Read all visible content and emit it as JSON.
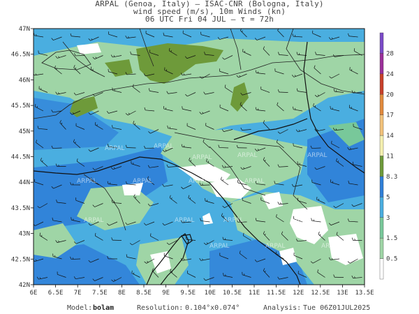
{
  "header": {
    "line1": "ARPAL (Genoa, Italy)  —  ISAC-CNR (Bologna, Italy)",
    "line2": "wind speed (m/s), 10m Winds (kn)",
    "line3": "06 UTC Fri 04 JUL  –  τ = 72h"
  },
  "map": {
    "lon_range": [
      6,
      13.5
    ],
    "lat_range": [
      42,
      47
    ],
    "lon_ticks": [
      "6E",
      "6.5E",
      "7E",
      "7.5E",
      "8E",
      "8.5E",
      "9E",
      "9.5E",
      "10E",
      "10.5E",
      "11E",
      "11.5E",
      "12E",
      "12.5E",
      "13E",
      "13.5E"
    ],
    "lat_ticks": [
      "42N",
      "42.5N",
      "43N",
      "43.5N",
      "44N",
      "44.5N",
      "45N",
      "45.5N",
      "46N",
      "46.5N",
      "47N"
    ],
    "watermark": "ARPAL"
  },
  "colorbar": {
    "labels": [
      "0.5",
      "1.5",
      "3",
      "5",
      "8.3",
      "11",
      "14",
      "17",
      "20",
      "24",
      "28"
    ],
    "colors": [
      "#ffffff",
      "#9fd5a6",
      "#78c89a",
      "#4aaee0",
      "#2f7fd8",
      "#6e9a3a",
      "#f5f0b0",
      "#f2c27a",
      "#e28a3c",
      "#c8402a",
      "#9b2f9a",
      "#7a4ac8"
    ]
  },
  "footer": {
    "model_label": "Model:",
    "model_value": "bolam",
    "res_label": "Resolution:",
    "res_value": "0.104°x0.074°",
    "analysis_label": "Analysis:",
    "analysis_value": "Tue 06Z01JUL2025"
  }
}
